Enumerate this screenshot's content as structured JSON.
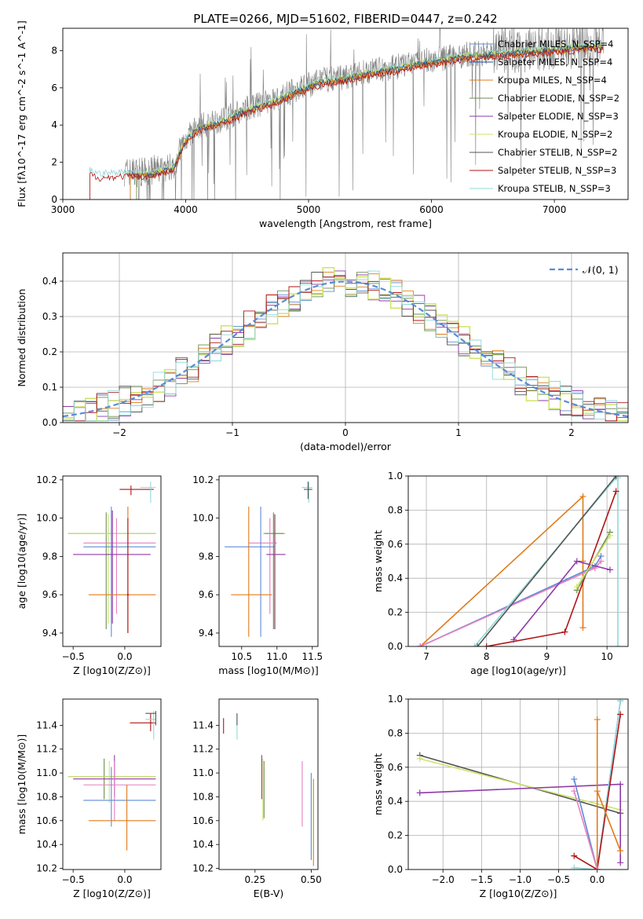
{
  "figure_title": "PLATE=0266, MJD=51602, FIBERID=0447, z=0.242",
  "colors": {
    "Chabrier MILES": "#5b8bd6",
    "Salpeter MILES": "#1f4e9c",
    "Kroupa MILES": "#e07b1a",
    "Chabrier ELODIE": "#6b8f4e",
    "Salpeter ELODIE": "#8e3aa8",
    "Kroupa ELODIE": "#cfe36a",
    "Chabrier STELIB": "#555555",
    "Salpeter STELIB": "#b01414",
    "Kroupa STELIB": "#8fd8d8",
    "pink": "#e77fbf",
    "observed": "#808080",
    "normal": "#5b8bd6"
  },
  "chart_data": [
    {
      "id": "spectrum",
      "type": "line",
      "xlabel": "wavelength [Angstrom, rest frame]",
      "ylabel": "Flux [fλ10^-17 erg cm^-2 s^-1 A^-1]",
      "xlim": [
        3000,
        7600
      ],
      "ylim": [
        0,
        9.2
      ],
      "xticks": [
        "3000",
        "4000",
        "5000",
        "6000",
        "7000"
      ],
      "yticks": [
        "0",
        "2",
        "4",
        "6",
        "8"
      ],
      "grid": false,
      "legend_position": "top-right",
      "legend": [
        "Chabrier MILES, N_SSP=4",
        "Salpeter MILES, N_SSP=4",
        "Kroupa MILES, N_SSP=4",
        "Chabrier ELODIE, N_SSP=2",
        "Salpeter ELODIE, N_SSP=3",
        "Kroupa ELODIE, N_SSP=2",
        "Chabrier STELIB, N_SSP=2",
        "Salpeter STELIB, N_SSP=3",
        "Kroupa STELIB, N_SSP=3"
      ],
      "continuum": {
        "x": [
          3220,
          3300,
          3500,
          3700,
          3900,
          4000,
          4100,
          4300,
          4500,
          4700,
          4900,
          5100,
          5300,
          5500,
          5700,
          5900,
          6100,
          6300,
          6500,
          6700,
          6900,
          7100,
          7300,
          7400
        ],
        "y": [
          1.6,
          1.4,
          1.5,
          1.45,
          1.8,
          3.3,
          3.9,
          4.3,
          4.9,
          5.3,
          5.9,
          6.4,
          6.6,
          6.9,
          7.1,
          7.4,
          7.6,
          7.8,
          7.9,
          8.0,
          8.1,
          8.2,
          8.3,
          8.3
        ]
      }
    },
    {
      "id": "residuals",
      "type": "line",
      "xlabel": "(data-model)/error",
      "ylabel": "Normed distribution",
      "xlim": [
        -2.5,
        2.5
      ],
      "ylim": [
        0,
        0.48
      ],
      "xticks": [
        "−2",
        "−1",
        "0",
        "1",
        "2"
      ],
      "yticks": [
        "0.0",
        "0.1",
        "0.2",
        "0.3",
        "0.4"
      ],
      "grid": true,
      "legend_position": "top-right",
      "legend": [
        "𝒩(0, 1)"
      ]
    },
    {
      "id": "age_vs_Z",
      "type": "scatter",
      "xlabel": "Z [log10(Z/Z⊙)]",
      "ylabel": "age  [log10(age/yr)]",
      "xlim": [
        -0.6,
        0.35
      ],
      "ylim": [
        9.33,
        10.22
      ],
      "xticks": [
        "−0.5",
        "0.0"
      ],
      "yticks": [
        "9.4",
        "9.6",
        "9.8",
        "10.0",
        "10.2"
      ],
      "points": [
        {
          "c": "Salpeter STELIB",
          "x": 0.06,
          "y": 10.15,
          "xe": [
            -0.05,
            0.28
          ],
          "ye": [
            10.12,
            10.17
          ]
        },
        {
          "c": "Kroupa STELIB",
          "x": 0.25,
          "y": 10.16,
          "xe": [
            0.15,
            0.3
          ],
          "ye": [
            10.08,
            10.19
          ]
        },
        {
          "c": "Chabrier ELODIE",
          "x": -0.18,
          "y": 9.92,
          "xe": [
            -0.55,
            0.3
          ],
          "ye": [
            9.42,
            10.03
          ]
        },
        {
          "c": "Kroupa ELODIE",
          "x": -0.16,
          "y": 9.92,
          "xe": [
            -0.55,
            0.3
          ],
          "ye": [
            9.45,
            10.02
          ]
        },
        {
          "c": "pink",
          "x": -0.08,
          "y": 9.87,
          "xe": [
            -0.4,
            0.3
          ],
          "ye": [
            9.5,
            10.0
          ]
        },
        {
          "c": "Chabrier MILES",
          "x": -0.13,
          "y": 9.85,
          "xe": [
            -0.4,
            0.3
          ],
          "ye": [
            9.38,
            10.06
          ]
        },
        {
          "c": "Salpeter ELODIE",
          "x": -0.12,
          "y": 9.81,
          "xe": [
            -0.5,
            0.25
          ],
          "ye": [
            9.45,
            10.04
          ]
        },
        {
          "c": "Kroupa MILES",
          "x": 0.03,
          "y": 9.6,
          "xe": [
            -0.35,
            0.3
          ],
          "ye": [
            9.4,
            10.06
          ]
        },
        {
          "c": "Salpeter STELIB",
          "x": 0.03,
          "y": 9.6,
          "xe": [
            0.02,
            0.04
          ],
          "ye": [
            9.4,
            10.0
          ]
        }
      ]
    },
    {
      "id": "age_vs_mass",
      "type": "scatter",
      "xlabel": "mass [log10(M/M⊙)]",
      "ylabel": "",
      "xlim": [
        10.18,
        11.58
      ],
      "ylim": [
        9.33,
        10.22
      ],
      "xticks": [
        "10.5",
        "11.0",
        "11.5"
      ],
      "yticks": [
        "9.4",
        "9.6",
        "9.8",
        "10.0",
        "10.2"
      ],
      "points": [
        {
          "c": "Kroupa STELIB",
          "x": 11.45,
          "y": 10.16,
          "xe": [
            11.35,
            11.5
          ],
          "ye": [
            10.08,
            10.19
          ]
        },
        {
          "c": "Chabrier STELIB",
          "x": 11.44,
          "y": 10.15,
          "xe": [
            11.38,
            11.5
          ],
          "ye": [
            10.1,
            10.19
          ]
        },
        {
          "c": "Kroupa ELODIE",
          "x": 10.96,
          "y": 9.92,
          "xe": [
            10.8,
            11.12
          ],
          "ye": [
            9.42,
            10.02
          ]
        },
        {
          "c": "Chabrier ELODIE",
          "x": 10.95,
          "y": 9.92,
          "xe": [
            10.82,
            11.1
          ],
          "ye": [
            9.42,
            10.03
          ]
        },
        {
          "c": "pink",
          "x": 10.9,
          "y": 9.87,
          "xe": [
            10.6,
            11.0
          ],
          "ye": [
            9.5,
            10.0
          ]
        },
        {
          "c": "Chabrier MILES",
          "x": 10.77,
          "y": 9.85,
          "xe": [
            10.26,
            10.97
          ],
          "ye": [
            9.38,
            10.06
          ]
        },
        {
          "c": "Salpeter ELODIE",
          "x": 10.97,
          "y": 9.81,
          "xe": [
            10.85,
            11.12
          ],
          "ye": [
            9.42,
            10.02
          ]
        },
        {
          "c": "Kroupa MILES",
          "x": 10.6,
          "y": 9.6,
          "xe": [
            10.35,
            10.93
          ],
          "ye": [
            9.38,
            10.06
          ]
        }
      ]
    },
    {
      "id": "weight_vs_age",
      "type": "line",
      "xlabel": "age  [log10(age/yr)]",
      "ylabel": "mass weight",
      "xlim": [
        6.7,
        10.35
      ],
      "ylim": [
        0,
        1.0
      ],
      "xticks": [
        "7",
        "8",
        "9",
        "10"
      ],
      "yticks": [
        "0.0",
        "0.2",
        "0.4",
        "0.6",
        "0.8",
        "1.0"
      ],
      "grid": true,
      "series": [
        {
          "c": "Kroupa MILES",
          "x": [
            6.9,
            9.6,
            9.6,
            9.6
          ],
          "y": [
            0.0,
            0.88,
            0.5,
            0.11
          ]
        },
        {
          "c": "Chabrier MILES",
          "x": [
            6.9,
            9.8,
            9.9
          ],
          "y": [
            0.0,
            0.47,
            0.53
          ]
        },
        {
          "c": "pink",
          "x": [
            6.9,
            9.8,
            9.9
          ],
          "y": [
            0.0,
            0.46,
            0.5
          ]
        },
        {
          "c": "Kroupa STELIB",
          "x": [
            7.8,
            10.15,
            10.18,
            10.18
          ],
          "y": [
            0.0,
            0.99,
            0.99,
            0.0
          ]
        },
        {
          "c": "Chabrier STELIB",
          "x": [
            7.85,
            10.15
          ],
          "y": [
            0.0,
            1.0
          ]
        },
        {
          "c": "Salpeter STELIB",
          "x": [
            8.0,
            9.3,
            10.15
          ],
          "y": [
            0.0,
            0.085,
            0.91
          ]
        },
        {
          "c": "Salpeter ELODIE",
          "x": [
            8.45,
            9.5,
            10.05
          ],
          "y": [
            0.04,
            0.5,
            0.45
          ]
        },
        {
          "c": "Chabrier ELODIE",
          "x": [
            9.5,
            10.05
          ],
          "y": [
            0.33,
            0.67
          ]
        },
        {
          "c": "Kroupa ELODIE",
          "x": [
            9.5,
            10.05
          ],
          "y": [
            0.35,
            0.65
          ]
        }
      ]
    },
    {
      "id": "mass_vs_Z",
      "type": "scatter",
      "xlabel": "Z [log10(Z/Z⊙)]",
      "ylabel": "mass [log10(M/M⊙)]",
      "xlim": [
        -0.6,
        0.35
      ],
      "ylim": [
        10.19,
        11.62
      ],
      "xticks": [
        "−0.5",
        "0.0"
      ],
      "yticks": [
        "10.2",
        "10.4",
        "10.6",
        "10.8",
        "11.0",
        "11.2",
        "11.4"
      ],
      "points": [
        {
          "c": "Salpeter STELIB",
          "x": 0.25,
          "y": 11.42,
          "xe": [
            0.05,
            0.3
          ],
          "ye": [
            11.35,
            11.5
          ]
        },
        {
          "c": "Kroupa STELIB",
          "x": 0.28,
          "y": 11.45,
          "xe": [
            0.2,
            0.3
          ],
          "ye": [
            11.28,
            11.52
          ]
        },
        {
          "c": "Chabrier STELIB",
          "x": 0.3,
          "y": 11.5,
          "xe": [
            0.2,
            0.3
          ],
          "ye": [
            11.4,
            11.52
          ]
        },
        {
          "c": "Chabrier ELODIE",
          "x": -0.2,
          "y": 10.97,
          "xe": [
            -0.55,
            0.3
          ],
          "ye": [
            10.78,
            11.12
          ]
        },
        {
          "c": "Kroupa ELODIE",
          "x": -0.15,
          "y": 10.97,
          "xe": [
            -0.55,
            0.3
          ],
          "ye": [
            10.75,
            11.1
          ]
        },
        {
          "c": "Salpeter ELODIE",
          "x": -0.1,
          "y": 10.95,
          "xe": [
            -0.5,
            0.3
          ],
          "ye": [
            10.8,
            11.15
          ]
        },
        {
          "c": "pink",
          "x": -0.1,
          "y": 10.9,
          "xe": [
            -0.4,
            0.3
          ],
          "ye": [
            10.6,
            11.1
          ]
        },
        {
          "c": "Chabrier MILES",
          "x": -0.13,
          "y": 10.77,
          "xe": [
            -0.4,
            0.3
          ],
          "ye": [
            10.55,
            11.05
          ]
        },
        {
          "c": "Kroupa MILES",
          "x": 0.02,
          "y": 10.6,
          "xe": [
            -0.35,
            0.3
          ],
          "ye": [
            10.35,
            10.9
          ]
        }
      ]
    },
    {
      "id": "mass_vs_EBV",
      "type": "scatter",
      "xlabel": "E(B-V)",
      "ylabel": "",
      "xlim": [
        0.09,
        0.53
      ],
      "ylim": [
        10.19,
        11.62
      ],
      "xticks": [
        "0.25",
        "0.50"
      ],
      "yticks": [
        "10.2",
        "10.4",
        "10.6",
        "10.8",
        "11.0",
        "11.2",
        "11.4"
      ],
      "points": [
        {
          "c": "Salpeter STELIB",
          "x": 0.11,
          "y": 11.42,
          "xe": [
            0.11,
            0.11
          ],
          "ye": [
            11.33,
            11.46
          ]
        },
        {
          "c": "Kroupa STELIB",
          "x": 0.17,
          "y": 11.42,
          "xe": [
            0.17,
            0.17
          ],
          "ye": [
            11.28,
            11.5
          ]
        },
        {
          "c": "Chabrier STELIB",
          "x": 0.17,
          "y": 11.47,
          "xe": [
            0.17,
            0.17
          ],
          "ye": [
            11.4,
            11.5
          ]
        },
        {
          "c": "Salpeter ELODIE",
          "x": 0.28,
          "y": 11.0,
          "xe": [
            0.28,
            0.28
          ],
          "ye": [
            10.78,
            11.15
          ]
        },
        {
          "c": "Kroupa ELODIE",
          "x": 0.285,
          "y": 10.85,
          "xe": [
            0.285,
            0.285
          ],
          "ye": [
            10.6,
            11.12
          ]
        },
        {
          "c": "Chabrier ELODIE",
          "x": 0.29,
          "y": 10.97,
          "xe": [
            0.29,
            0.29
          ],
          "ye": [
            10.62,
            11.1
          ]
        },
        {
          "c": "pink",
          "x": 0.46,
          "y": 10.85,
          "xe": [
            0.46,
            0.46
          ],
          "ye": [
            10.55,
            11.1
          ]
        },
        {
          "c": "Chabrier MILES",
          "x": 0.5,
          "y": 10.77,
          "xe": [
            0.5,
            0.5
          ],
          "ye": [
            10.27,
            11.0
          ]
        },
        {
          "c": "Kroupa MILES",
          "x": 0.51,
          "y": 10.6,
          "xe": [
            0.51,
            0.51
          ],
          "ye": [
            10.22,
            10.95
          ]
        }
      ]
    },
    {
      "id": "weight_vs_Z",
      "type": "line",
      "xlabel": "Z [log10(Z/Z⊙)]",
      "ylabel": "mass weight",
      "xlim": [
        -2.45,
        0.4
      ],
      "ylim": [
        0,
        1.0
      ],
      "xticks": [
        "−2.0",
        "−1.5",
        "−1.0",
        "−0.5",
        "0.0"
      ],
      "yticks": [
        "0.0",
        "0.2",
        "0.4",
        "0.6",
        "0.8",
        "1.0"
      ],
      "grid": true,
      "series": [
        {
          "c": "Chabrier STELIB",
          "x": [
            -2.3,
            0.3
          ],
          "y": [
            0.67,
            0.33
          ]
        },
        {
          "c": "Kroupa ELODIE",
          "x": [
            -2.3,
            0.3
          ],
          "y": [
            0.65,
            0.35
          ]
        },
        {
          "c": "Salpeter ELODIE",
          "x": [
            -2.3,
            0.3,
            0.3
          ],
          "y": [
            0.45,
            0.5,
            0.04
          ]
        },
        {
          "c": "Chabrier MILES",
          "x": [
            -0.3,
            0.0,
            0.3
          ],
          "y": [
            0.53,
            0.0,
            0.99
          ]
        },
        {
          "c": "Kroupa STELIB",
          "x": [
            -0.3,
            0.0,
            0.3
          ],
          "y": [
            0.01,
            0.0,
            0.99
          ]
        },
        {
          "c": "Salpeter STELIB",
          "x": [
            -0.3,
            0.0,
            0.3
          ],
          "y": [
            0.08,
            0.0,
            0.91
          ]
        },
        {
          "c": "Kroupa MILES",
          "x": [
            0.0,
            0.0,
            0.0,
            0.3
          ],
          "y": [
            0.0,
            0.88,
            0.46,
            0.11
          ]
        },
        {
          "c": "pink",
          "x": [
            -0.3,
            0.0
          ],
          "y": [
            0.46,
            0.0
          ]
        }
      ]
    }
  ]
}
